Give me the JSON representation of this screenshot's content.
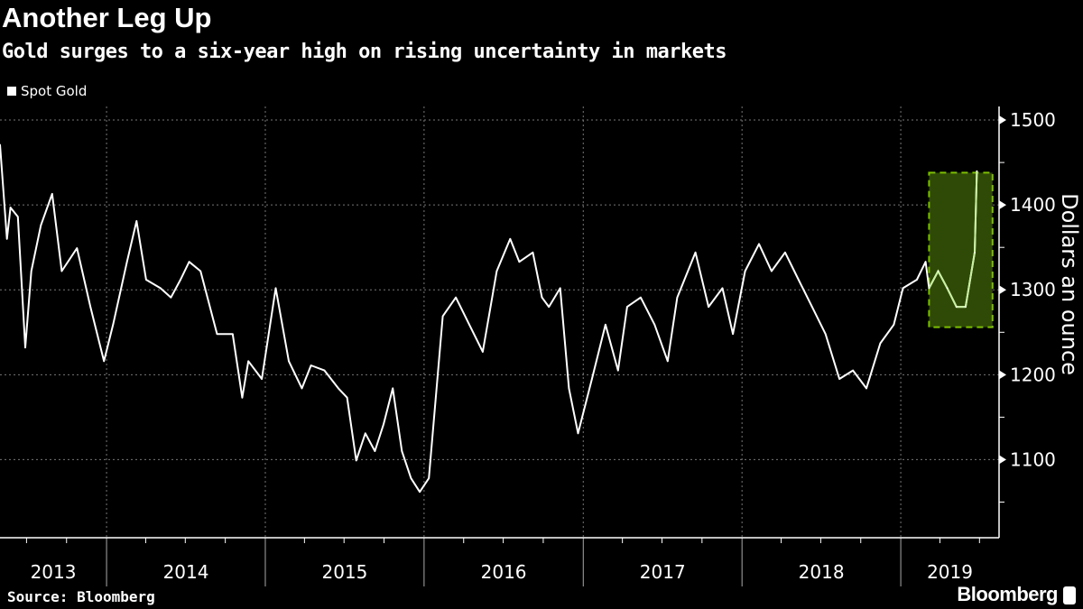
{
  "chart_data": {
    "type": "line",
    "title": "Another Leg Up",
    "subtitle": "Gold surges to a six-year high on rising uncertainty in markets",
    "ylabel": "Dollars an ounce",
    "xlabel": "",
    "xlim": [
      "2013-05-01",
      "2019-08-15"
    ],
    "ylim": [
      1008,
      1516
    ],
    "y_ticks": [
      1100,
      1200,
      1300,
      1400,
      1500
    ],
    "x_tick_labels": [
      "2013",
      "2014",
      "2015",
      "2016",
      "2017",
      "2018",
      "2019"
    ],
    "y_axis_side": "right",
    "grid": true,
    "legend_position": "top-left",
    "source": "Source: Bloomberg",
    "brand": "Bloomberg",
    "colors": {
      "background": "#000000",
      "line": "#ffffff",
      "highlight_fill": "#2f4a06",
      "highlight_border": "#7cc000",
      "highlight_line": "#c8f0a0"
    },
    "highlight": {
      "x": [
        "2019-03-07",
        "2019-07-31"
      ],
      "y": [
        1256,
        1438
      ]
    },
    "series": [
      {
        "name": "Spot Gold",
        "points": [
          [
            "2013-05-01",
            1471
          ],
          [
            "2013-05-17",
            1360
          ],
          [
            "2013-05-25",
            1397
          ],
          [
            "2013-06-11",
            1386
          ],
          [
            "2013-06-28",
            1232
          ],
          [
            "2013-07-12",
            1322
          ],
          [
            "2013-08-03",
            1376
          ],
          [
            "2013-08-29",
            1413
          ],
          [
            "2013-09-20",
            1322
          ],
          [
            "2013-10-25",
            1349
          ],
          [
            "2013-11-25",
            1280
          ],
          [
            "2013-12-26",
            1216
          ],
          [
            "2014-01-16",
            1259
          ],
          [
            "2014-02-17",
            1333
          ],
          [
            "2014-03-11",
            1381
          ],
          [
            "2014-04-02",
            1312
          ],
          [
            "2014-05-05",
            1302
          ],
          [
            "2014-05-29",
            1291
          ],
          [
            "2014-06-20",
            1312
          ],
          [
            "2014-07-10",
            1333
          ],
          [
            "2014-08-05",
            1322
          ],
          [
            "2014-09-12",
            1248
          ],
          [
            "2014-10-18",
            1248
          ],
          [
            "2014-11-09",
            1173
          ],
          [
            "2014-11-23",
            1216
          ],
          [
            "2014-12-24",
            1195
          ],
          [
            "2015-01-25",
            1302
          ],
          [
            "2015-02-24",
            1216
          ],
          [
            "2015-03-26",
            1184
          ],
          [
            "2015-04-16",
            1211
          ],
          [
            "2015-05-17",
            1205
          ],
          [
            "2015-06-18",
            1184
          ],
          [
            "2015-07-08",
            1173
          ],
          [
            "2015-07-29",
            1099
          ],
          [
            "2015-08-19",
            1131
          ],
          [
            "2015-09-10",
            1110
          ],
          [
            "2015-09-30",
            1142
          ],
          [
            "2015-10-21",
            1184
          ],
          [
            "2015-11-11",
            1110
          ],
          [
            "2015-12-02",
            1078
          ],
          [
            "2015-12-22",
            1062
          ],
          [
            "2016-01-12",
            1078
          ],
          [
            "2016-02-13",
            1269
          ],
          [
            "2016-03-14",
            1291
          ],
          [
            "2016-04-14",
            1259
          ],
          [
            "2016-05-15",
            1227
          ],
          [
            "2016-06-16",
            1322
          ],
          [
            "2016-07-17",
            1360
          ],
          [
            "2016-08-07",
            1333
          ],
          [
            "2016-09-07",
            1344
          ],
          [
            "2016-09-28",
            1291
          ],
          [
            "2016-10-14",
            1280
          ],
          [
            "2016-11-09",
            1302
          ],
          [
            "2016-11-29",
            1184
          ],
          [
            "2016-12-20",
            1131
          ],
          [
            "2017-01-21",
            1195
          ],
          [
            "2017-02-21",
            1259
          ],
          [
            "2017-03-22",
            1205
          ],
          [
            "2017-04-12",
            1280
          ],
          [
            "2017-05-13",
            1291
          ],
          [
            "2017-06-14",
            1259
          ],
          [
            "2017-07-14",
            1216
          ],
          [
            "2017-08-05",
            1291
          ],
          [
            "2017-09-16",
            1344
          ],
          [
            "2017-10-16",
            1280
          ],
          [
            "2017-11-17",
            1302
          ],
          [
            "2017-12-11",
            1248
          ],
          [
            "2018-01-08",
            1322
          ],
          [
            "2018-02-09",
            1354
          ],
          [
            "2018-03-10",
            1322
          ],
          [
            "2018-04-10",
            1344
          ],
          [
            "2018-05-11",
            1312
          ],
          [
            "2018-06-11",
            1280
          ],
          [
            "2018-07-12",
            1248
          ],
          [
            "2018-08-13",
            1195
          ],
          [
            "2018-09-13",
            1205
          ],
          [
            "2018-10-14",
            1184
          ],
          [
            "2018-11-15",
            1237
          ],
          [
            "2018-12-16",
            1259
          ],
          [
            "2019-01-06",
            1302
          ],
          [
            "2019-02-07",
            1312
          ],
          [
            "2019-02-27",
            1333
          ],
          [
            "2019-03-07",
            1302
          ],
          [
            "2019-03-28",
            1322
          ],
          [
            "2019-04-18",
            1302
          ],
          [
            "2019-05-09",
            1280
          ],
          [
            "2019-05-30",
            1280
          ],
          [
            "2019-06-20",
            1344
          ],
          [
            "2019-06-25",
            1440
          ]
        ]
      }
    ]
  }
}
